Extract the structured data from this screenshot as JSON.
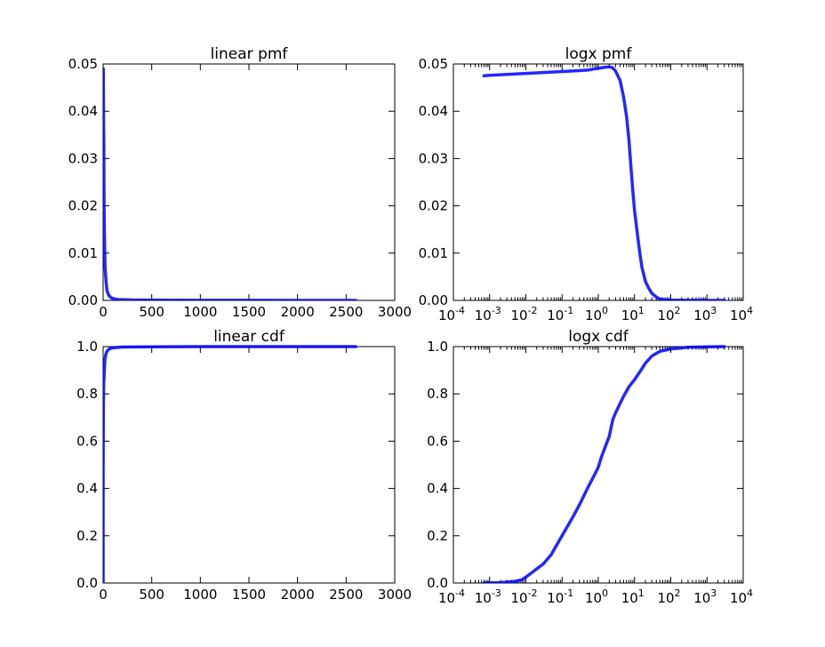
{
  "chart_data": [
    {
      "type": "line",
      "title": "linear pmf",
      "xscale": "linear",
      "xlim": [
        0,
        3000
      ],
      "ylim": [
        0,
        0.05
      ],
      "xticks": [
        0,
        500,
        1000,
        1500,
        2000,
        2500,
        3000
      ],
      "xtick_labels": [
        "0",
        "500",
        "1000",
        "1500",
        "2000",
        "2500",
        "3000"
      ],
      "yticks": [
        0,
        0.01,
        0.02,
        0.03,
        0.04,
        0.05
      ],
      "ytick_labels": [
        "0.00",
        "0.01",
        "0.02",
        "0.03",
        "0.04",
        "0.05"
      ],
      "grid": false,
      "series": [
        {
          "color": "#0000ff",
          "x": [
            0.001,
            2,
            5,
            8,
            10,
            15,
            20,
            30,
            40,
            60,
            80,
            100,
            150,
            300,
            600,
            1000,
            1500,
            2000,
            2600
          ],
          "y": [
            0.0475,
            0.049,
            0.038,
            0.03,
            0.02,
            0.012,
            0.007,
            0.004,
            0.002,
            0.001,
            0.0006,
            0.0004,
            0.0002,
            0.0001,
            5e-05,
            3e-05,
            2e-05,
            1e-05,
            1e-05
          ]
        }
      ]
    },
    {
      "type": "line",
      "title": "logx pmf",
      "xscale": "log",
      "xlim": [
        0.0001,
        10000
      ],
      "ylim": [
        0,
        0.05
      ],
      "xticks": [
        0.0001,
        0.001,
        0.01,
        0.1,
        1,
        10,
        100,
        1000,
        10000
      ],
      "xtick_labels": [
        [
          "10",
          "-4"
        ],
        [
          "10",
          "-3"
        ],
        [
          "10",
          "-2"
        ],
        [
          "10",
          "-1"
        ],
        [
          "10",
          "0"
        ],
        [
          "10",
          "1"
        ],
        [
          "10",
          "2"
        ],
        [
          "10",
          "3"
        ],
        [
          "10",
          "4"
        ]
      ],
      "yticks": [
        0,
        0.01,
        0.02,
        0.03,
        0.04,
        0.05
      ],
      "ytick_labels": [
        "0.00",
        "0.01",
        "0.02",
        "0.03",
        "0.04",
        "0.05"
      ],
      "grid": false,
      "series": [
        {
          "color": "#0000ff",
          "x": [
            0.0007,
            0.001,
            0.01,
            0.1,
            0.5,
            1,
            1.5,
            2,
            2.5,
            3,
            4,
            5,
            6,
            7,
            8,
            9,
            10,
            12,
            14,
            16,
            20,
            25,
            30,
            40,
            50,
            70,
            100,
            300,
            1000,
            3000
          ],
          "y": [
            0.0475,
            0.0476,
            0.048,
            0.0484,
            0.0487,
            0.0491,
            0.0493,
            0.0494,
            0.0492,
            0.0485,
            0.0465,
            0.043,
            0.039,
            0.034,
            0.028,
            0.023,
            0.019,
            0.014,
            0.01,
            0.007,
            0.004,
            0.0025,
            0.0015,
            0.0007,
            0.0003,
            0.0001,
            5e-05,
            2e-05,
            1e-05,
            1e-05
          ]
        }
      ]
    },
    {
      "type": "line",
      "title": "linear cdf",
      "xscale": "linear",
      "xlim": [
        0,
        3000
      ],
      "ylim": [
        0,
        1.0
      ],
      "xticks": [
        0,
        500,
        1000,
        1500,
        2000,
        2500,
        3000
      ],
      "xtick_labels": [
        "0",
        "500",
        "1000",
        "1500",
        "2000",
        "2500",
        "3000"
      ],
      "yticks": [
        0,
        0.2,
        0.4,
        0.6,
        0.8,
        1.0
      ],
      "ytick_labels": [
        "0.0",
        "0.2",
        "0.4",
        "0.6",
        "0.8",
        "1.0"
      ],
      "grid": false,
      "series": [
        {
          "color": "#0000ff",
          "x": [
            0,
            0.5,
            1,
            2,
            3,
            5,
            7,
            10,
            15,
            20,
            30,
            40,
            60,
            100,
            200,
            500,
            1000,
            2000,
            2600
          ],
          "y": [
            0,
            0.47,
            0.55,
            0.65,
            0.75,
            0.8,
            0.85,
            0.87,
            0.92,
            0.95,
            0.97,
            0.98,
            0.99,
            0.995,
            0.998,
            0.999,
            1.0,
            1.0,
            1.0
          ]
        }
      ]
    },
    {
      "type": "line",
      "title": "logx cdf",
      "xscale": "log",
      "xlim": [
        0.0001,
        10000
      ],
      "ylim": [
        0,
        1.0
      ],
      "xticks": [
        0.0001,
        0.001,
        0.01,
        0.1,
        1,
        10,
        100,
        1000,
        10000
      ],
      "xtick_labels": [
        [
          "10",
          "-4"
        ],
        [
          "10",
          "-3"
        ],
        [
          "10",
          "-2"
        ],
        [
          "10",
          "-1"
        ],
        [
          "10",
          "0"
        ],
        [
          "10",
          "1"
        ],
        [
          "10",
          "2"
        ],
        [
          "10",
          "3"
        ],
        [
          "10",
          "4"
        ]
      ],
      "yticks": [
        0,
        0.2,
        0.4,
        0.6,
        0.8,
        1.0
      ],
      "ytick_labels": [
        "0.0",
        "0.2",
        "0.4",
        "0.6",
        "0.8",
        "1.0"
      ],
      "grid": false,
      "series": [
        {
          "color": "#0000ff",
          "x": [
            0.0007,
            0.001,
            0.002,
            0.005,
            0.008,
            0.01,
            0.015,
            0.02,
            0.03,
            0.05,
            0.1,
            0.2,
            0.3,
            0.5,
            0.8,
            1,
            1.2,
            1.5,
            2,
            2.5,
            3,
            4,
            5,
            7,
            10,
            15,
            20,
            30,
            50,
            100,
            300,
            1000,
            3000
          ],
          "y": [
            0,
            0.0008,
            0.002,
            0.007,
            0.015,
            0.025,
            0.045,
            0.06,
            0.08,
            0.12,
            0.2,
            0.28,
            0.33,
            0.4,
            0.46,
            0.49,
            0.53,
            0.57,
            0.62,
            0.69,
            0.72,
            0.76,
            0.79,
            0.83,
            0.86,
            0.9,
            0.93,
            0.96,
            0.98,
            0.99,
            0.997,
            0.999,
            1.0
          ]
        }
      ]
    }
  ]
}
